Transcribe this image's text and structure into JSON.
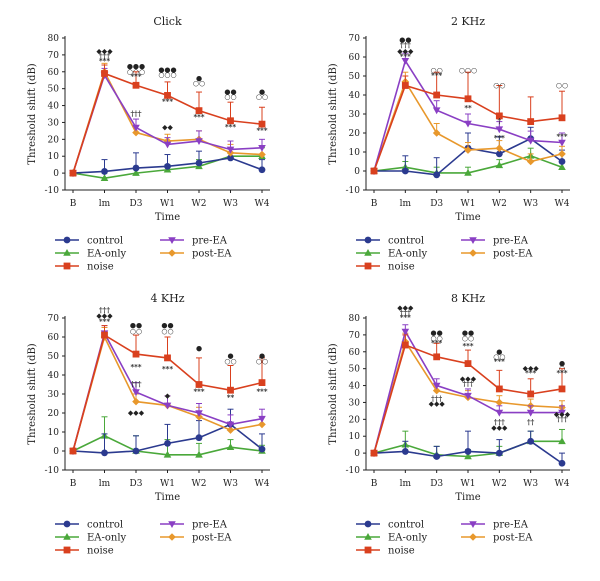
{
  "colors": {
    "control": "#2b3a8f",
    "EA-only": "#4aa83a",
    "noise": "#d9401e",
    "pre-EA": "#8a3fc4",
    "post-EA": "#e8982c",
    "axis": "#222222"
  },
  "legend": {
    "control": "control",
    "ea_only": "EA-only",
    "noise": "noise",
    "pre_ea": "pre-EA",
    "post_ea": "post-EA"
  },
  "chart_data": [
    {
      "type": "line",
      "title": "Click",
      "xlabel": "Time",
      "ylabel": "Threshold shift (dB)",
      "categories": [
        "B",
        "lm",
        "D3",
        "W1",
        "W2",
        "W3",
        "W4"
      ],
      "ylim": [
        -10,
        80
      ],
      "yticks": [
        -10,
        0,
        10,
        20,
        30,
        40,
        50,
        60,
        70,
        80
      ],
      "series": [
        {
          "name": "control",
          "values": [
            0,
            1,
            3,
            4,
            6,
            9,
            2
          ],
          "err": [
            0,
            7,
            9,
            7,
            7,
            6,
            6
          ]
        },
        {
          "name": "EA-only",
          "values": [
            0,
            -3,
            0,
            2,
            4,
            10,
            10
          ],
          "err": [
            0,
            3,
            3,
            3,
            4,
            5,
            5
          ]
        },
        {
          "name": "noise",
          "values": [
            0,
            59,
            52,
            46,
            37,
            31,
            29
          ],
          "err": [
            0,
            5,
            8,
            8,
            11,
            11,
            10
          ]
        },
        {
          "name": "pre-EA",
          "values": [
            0,
            58,
            27,
            17,
            19,
            14,
            15
          ],
          "err": [
            0,
            4,
            5,
            4,
            6,
            5,
            5
          ]
        },
        {
          "name": "post-EA",
          "values": [
            0,
            60,
            24,
            19,
            20,
            12,
            11
          ],
          "err": [
            0,
            5,
            4,
            4,
            5,
            5,
            5
          ]
        }
      ],
      "annotations": [
        {
          "x": "lm",
          "y": 72,
          "text": "◆◆◆"
        },
        {
          "x": "lm",
          "y": 69,
          "text": "†††"
        },
        {
          "x": "lm",
          "y": 66,
          "text": "***"
        },
        {
          "x": "D3",
          "y": 63,
          "text": "●●●"
        },
        {
          "x": "D3",
          "y": 60,
          "text": "○○○"
        },
        {
          "x": "D3",
          "y": 57,
          "text": "***"
        },
        {
          "x": "D3",
          "y": 35,
          "text": "†††"
        },
        {
          "x": "W1",
          "y": 61,
          "text": "●●●"
        },
        {
          "x": "W1",
          "y": 58,
          "text": "○○○"
        },
        {
          "x": "W1",
          "y": 42,
          "text": "***"
        },
        {
          "x": "W1",
          "y": 27,
          "text": "◆◆"
        },
        {
          "x": "W2",
          "y": 56,
          "text": "●"
        },
        {
          "x": "W2",
          "y": 53,
          "text": "○○"
        },
        {
          "x": "W2",
          "y": 33,
          "text": "***"
        },
        {
          "x": "W3",
          "y": 48,
          "text": "●●"
        },
        {
          "x": "W3",
          "y": 45,
          "text": "○○"
        },
        {
          "x": "W3",
          "y": 27,
          "text": "***"
        },
        {
          "x": "W4",
          "y": 48,
          "text": "●"
        },
        {
          "x": "W4",
          "y": 45,
          "text": "○○"
        },
        {
          "x": "W4",
          "y": 25,
          "text": "***"
        }
      ]
    },
    {
      "type": "line",
      "title": "2 KHz",
      "xlabel": "Time",
      "ylabel": "Threshold shift (dB)",
      "categories": [
        "B",
        "lm",
        "D3",
        "W1",
        "W2",
        "W3",
        "W4"
      ],
      "ylim": [
        -10,
        70
      ],
      "yticks": [
        -10,
        0,
        10,
        20,
        30,
        40,
        50,
        60,
        70
      ],
      "series": [
        {
          "name": "control",
          "values": [
            0,
            0,
            -2,
            12,
            9,
            17,
            5
          ],
          "err": [
            0,
            8,
            9,
            8,
            9,
            6,
            6
          ]
        },
        {
          "name": "EA-only",
          "values": [
            0,
            2,
            -1,
            -1,
            3,
            8,
            2
          ],
          "err": [
            0,
            3,
            3,
            3,
            3,
            4,
            3
          ]
        },
        {
          "name": "noise",
          "values": [
            0,
            45,
            40,
            38,
            29,
            26,
            28
          ],
          "err": [
            0,
            5,
            12,
            14,
            16,
            13,
            14
          ]
        },
        {
          "name": "pre-EA",
          "values": [
            0,
            58,
            32,
            25,
            22,
            16,
            15
          ],
          "err": [
            0,
            4,
            5,
            5,
            4,
            5,
            5
          ]
        },
        {
          "name": "post-EA",
          "values": [
            0,
            47,
            20,
            11,
            12,
            5,
            9
          ],
          "err": [
            0,
            5,
            5,
            4,
            4,
            4,
            4
          ]
        }
      ],
      "annotations": [
        {
          "x": "lm",
          "y": 69,
          "text": "●●"
        },
        {
          "x": "lm",
          "y": 66,
          "text": "†††"
        },
        {
          "x": "lm",
          "y": 63,
          "text": "◆◆◆"
        },
        {
          "x": "lm",
          "y": 60,
          "text": "***"
        },
        {
          "x": "D3",
          "y": 53,
          "text": "○○"
        },
        {
          "x": "D3",
          "y": 50,
          "text": "***"
        },
        {
          "x": "W1",
          "y": 53,
          "text": "○○○"
        },
        {
          "x": "W1",
          "y": 33,
          "text": "**"
        },
        {
          "x": "W2",
          "y": 45,
          "text": "○○"
        },
        {
          "x": "W2",
          "y": 26,
          "text": "†"
        },
        {
          "x": "W2",
          "y": 17,
          "text": "***"
        },
        {
          "x": "W4",
          "y": 45,
          "text": "○○"
        },
        {
          "x": "W4",
          "y": 18,
          "text": "***"
        }
      ]
    },
    {
      "type": "line",
      "title": "4 KHz",
      "xlabel": "Time",
      "ylabel": "Threshold shift (dB)",
      "categories": [
        "B",
        "lm",
        "D3",
        "W1",
        "W2",
        "W3",
        "W4"
      ],
      "ylim": [
        -10,
        70
      ],
      "yticks": [
        -10,
        0,
        10,
        20,
        30,
        40,
        50,
        60,
        70
      ],
      "series": [
        {
          "name": "control",
          "values": [
            0,
            -1,
            0,
            4,
            7,
            14,
            1
          ],
          "err": [
            0,
            10,
            8,
            10,
            9,
            8,
            8
          ]
        },
        {
          "name": "EA-only",
          "values": [
            0,
            8,
            0,
            -2,
            -2,
            2,
            0
          ],
          "err": [
            0,
            10,
            8,
            8,
            6,
            4,
            3
          ]
        },
        {
          "name": "noise",
          "values": [
            0,
            61,
            51,
            49,
            35,
            32,
            36
          ],
          "err": [
            0,
            5,
            10,
            11,
            14,
            13,
            13
          ]
        },
        {
          "name": "pre-EA",
          "values": [
            0,
            62,
            31,
            24,
            20,
            14,
            17
          ],
          "err": [
            0,
            4,
            5,
            5,
            5,
            5,
            5
          ]
        },
        {
          "name": "post-EA",
          "values": [
            0,
            60,
            26,
            24,
            18,
            11,
            14
          ],
          "err": [
            0,
            5,
            4,
            5,
            5,
            4,
            4
          ]
        }
      ],
      "annotations": [
        {
          "x": "lm",
          "y": 74,
          "text": "†††"
        },
        {
          "x": "lm",
          "y": 71,
          "text": "◆◆◆"
        },
        {
          "x": "lm",
          "y": 68,
          "text": "***"
        },
        {
          "x": "D3",
          "y": 66,
          "text": "●●"
        },
        {
          "x": "D3",
          "y": 63,
          "text": "○○"
        },
        {
          "x": "D3",
          "y": 44,
          "text": "***"
        },
        {
          "x": "D3",
          "y": 35,
          "text": "†††"
        },
        {
          "x": "D3",
          "y": 20,
          "text": "◆◆◆"
        },
        {
          "x": "W1",
          "y": 66,
          "text": "●●"
        },
        {
          "x": "W1",
          "y": 63,
          "text": "○○"
        },
        {
          "x": "W1",
          "y": 43,
          "text": "***"
        },
        {
          "x": "W1",
          "y": 29,
          "text": "◆"
        },
        {
          "x": "W2",
          "y": 54,
          "text": "●"
        },
        {
          "x": "W2",
          "y": 31,
          "text": "***"
        },
        {
          "x": "W3",
          "y": 50,
          "text": "●"
        },
        {
          "x": "W3",
          "y": 47,
          "text": "○○"
        },
        {
          "x": "W3",
          "y": 28,
          "text": "**"
        },
        {
          "x": "W4",
          "y": 50,
          "text": "●"
        },
        {
          "x": "W4",
          "y": 47,
          "text": "○○"
        },
        {
          "x": "W4",
          "y": 31,
          "text": "***"
        }
      ]
    },
    {
      "type": "line",
      "title": "8 KHz",
      "xlabel": "Time",
      "ylabel": "Threshold shift (dB)",
      "categories": [
        "B",
        "lm",
        "D3",
        "W1",
        "W2",
        "W3",
        "W4"
      ],
      "ylim": [
        -10,
        80
      ],
      "yticks": [
        -10,
        0,
        10,
        20,
        30,
        40,
        50,
        60,
        70,
        80
      ],
      "series": [
        {
          "name": "control",
          "values": [
            0,
            1,
            -2,
            1,
            0,
            7,
            -6
          ],
          "err": [
            0,
            6,
            6,
            12,
            8,
            6,
            6
          ]
        },
        {
          "name": "EA-only",
          "values": [
            0,
            5,
            -1,
            -2,
            0,
            7,
            7
          ],
          "err": [
            0,
            8,
            5,
            4,
            4,
            6,
            7
          ]
        },
        {
          "name": "noise",
          "values": [
            0,
            64,
            57,
            53,
            38,
            35,
            38
          ],
          "err": [
            0,
            6,
            8,
            8,
            11,
            9,
            12
          ]
        },
        {
          "name": "pre-EA",
          "values": [
            0,
            72,
            40,
            34,
            24,
            24,
            24
          ],
          "err": [
            0,
            4,
            4,
            4,
            4,
            4,
            4
          ]
        },
        {
          "name": "post-EA",
          "values": [
            0,
            66,
            37,
            33,
            30,
            28,
            27
          ],
          "err": [
            0,
            5,
            4,
            4,
            4,
            4,
            4
          ]
        }
      ],
      "annotations": [
        {
          "x": "lm",
          "y": 86,
          "text": "◆◆◆"
        },
        {
          "x": "lm",
          "y": 83,
          "text": "†††"
        },
        {
          "x": "lm",
          "y": 80,
          "text": "***"
        },
        {
          "x": "D3",
          "y": 71,
          "text": "●●"
        },
        {
          "x": "D3",
          "y": 68,
          "text": "○○"
        },
        {
          "x": "D3",
          "y": 65,
          "text": "***"
        },
        {
          "x": "D3",
          "y": 32,
          "text": "†††"
        },
        {
          "x": "D3",
          "y": 29,
          "text": "◆◆◆"
        },
        {
          "x": "W1",
          "y": 71,
          "text": "●●"
        },
        {
          "x": "W1",
          "y": 68,
          "text": "○○"
        },
        {
          "x": "W1",
          "y": 63,
          "text": "***"
        },
        {
          "x": "W1",
          "y": 44,
          "text": "◆◆◆"
        },
        {
          "x": "W1",
          "y": 41,
          "text": "†††"
        },
        {
          "x": "W2",
          "y": 60,
          "text": "●"
        },
        {
          "x": "W2",
          "y": 57,
          "text": "○○"
        },
        {
          "x": "W2",
          "y": 54,
          "text": "***"
        },
        {
          "x": "W2",
          "y": 18,
          "text": "†††"
        },
        {
          "x": "W2",
          "y": 15,
          "text": "◆◆◆"
        },
        {
          "x": "W3",
          "y": 50,
          "text": "◆◆◆"
        },
        {
          "x": "W3",
          "y": 47,
          "text": "***"
        },
        {
          "x": "W3",
          "y": 18,
          "text": "††"
        },
        {
          "x": "W4",
          "y": 53,
          "text": "●"
        },
        {
          "x": "W4",
          "y": 50,
          "text": "○"
        },
        {
          "x": "W4",
          "y": 47,
          "text": "***"
        },
        {
          "x": "W4",
          "y": 23,
          "text": "◆◆◆"
        },
        {
          "x": "W4",
          "y": 20,
          "text": "†††"
        }
      ]
    }
  ]
}
